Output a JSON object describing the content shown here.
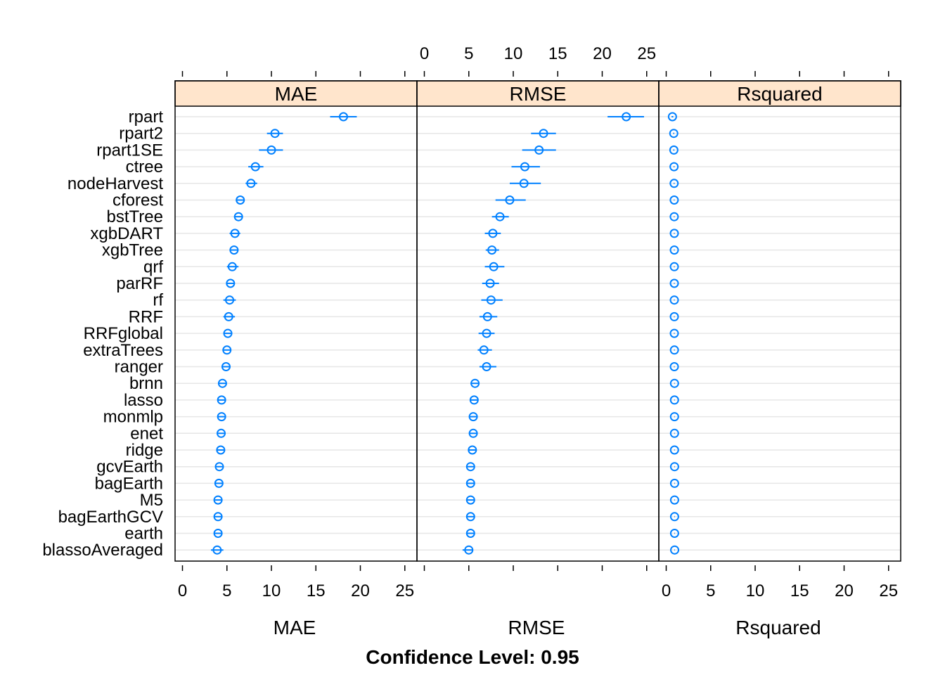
{
  "chart_data": {
    "type": "dotplot",
    "title": "",
    "subtitle": "Confidence Level: 0.95",
    "xlim": [
      0,
      25
    ],
    "xticks": [
      0,
      5,
      10,
      15,
      20,
      25
    ],
    "colors": {
      "series": "#0080ff",
      "strip_bg": "#ffe5cc",
      "grid": "#e6e6e6"
    },
    "grid": true,
    "models": [
      "rpart",
      "rpart2",
      "rpart1SE",
      "ctree",
      "nodeHarvest",
      "cforest",
      "bstTree",
      "xgbDART",
      "xgbTree",
      "qrf",
      "parRF",
      "rf",
      "RRF",
      "RRFglobal",
      "extraTrees",
      "ranger",
      "brnn",
      "lasso",
      "monmlp",
      "enet",
      "ridge",
      "gcvEarth",
      "bagEarth",
      "M5",
      "bagEarthGCV",
      "earth",
      "blassoAveraged"
    ],
    "panels": [
      {
        "name": "MAE",
        "xlabel": "MAE",
        "estimate": [
          18.1,
          10.4,
          10.0,
          8.2,
          7.7,
          6.5,
          6.3,
          5.9,
          5.8,
          5.6,
          5.4,
          5.3,
          5.2,
          5.1,
          5.0,
          4.9,
          4.5,
          4.4,
          4.4,
          4.35,
          4.3,
          4.15,
          4.1,
          4.0,
          4.0,
          4.0,
          3.9
        ],
        "lower": [
          16.6,
          9.5,
          8.6,
          7.4,
          7.1,
          6.0,
          5.8,
          5.3,
          5.4,
          5.0,
          4.9,
          4.6,
          4.6,
          4.6,
          4.6,
          4.5,
          4.0,
          4.0,
          4.0,
          4.0,
          3.9,
          3.75,
          3.7,
          3.65,
          3.6,
          3.6,
          3.2
        ],
        "upper": [
          19.6,
          11.3,
          11.3,
          9.1,
          8.4,
          7.0,
          6.8,
          6.5,
          6.3,
          6.3,
          5.9,
          6.0,
          5.9,
          5.6,
          5.4,
          5.4,
          4.9,
          4.8,
          4.8,
          4.7,
          4.7,
          4.5,
          4.5,
          4.4,
          4.4,
          4.4,
          4.6
        ]
      },
      {
        "name": "RMSE",
        "xlabel": "RMSE",
        "estimate": [
          22.7,
          13.4,
          12.9,
          11.3,
          11.2,
          9.6,
          8.5,
          7.7,
          7.6,
          7.8,
          7.4,
          7.5,
          7.1,
          7.0,
          6.7,
          7.0,
          5.7,
          5.6,
          5.5,
          5.5,
          5.4,
          5.2,
          5.2,
          5.2,
          5.2,
          5.2,
          5.0
        ],
        "lower": [
          20.6,
          12.0,
          11.0,
          9.8,
          9.6,
          8.0,
          7.6,
          6.8,
          6.9,
          6.8,
          6.5,
          6.4,
          6.2,
          6.1,
          6.0,
          6.2,
          5.2,
          5.1,
          5.1,
          5.1,
          5.0,
          4.8,
          4.8,
          4.8,
          4.8,
          4.8,
          4.3
        ],
        "upper": [
          24.7,
          14.8,
          14.8,
          13.0,
          13.1,
          11.4,
          9.5,
          8.6,
          8.4,
          9.0,
          8.4,
          8.8,
          8.2,
          7.9,
          7.6,
          8.1,
          6.2,
          6.0,
          6.0,
          5.9,
          5.9,
          5.6,
          5.6,
          5.6,
          5.6,
          5.6,
          5.5
        ]
      },
      {
        "name": "Rsquared",
        "xlabel": "Rsquared",
        "estimate": [
          0.7,
          0.85,
          0.86,
          0.88,
          0.89,
          0.9,
          0.9,
          0.91,
          0.91,
          0.91,
          0.91,
          0.91,
          0.91,
          0.91,
          0.92,
          0.91,
          0.93,
          0.93,
          0.93,
          0.93,
          0.93,
          0.94,
          0.94,
          0.94,
          0.94,
          0.94,
          0.95
        ],
        "lower": [
          0.6,
          0.79,
          0.8,
          0.83,
          0.84,
          0.86,
          0.86,
          0.87,
          0.87,
          0.87,
          0.87,
          0.87,
          0.87,
          0.87,
          0.88,
          0.87,
          0.9,
          0.9,
          0.9,
          0.9,
          0.9,
          0.91,
          0.91,
          0.91,
          0.91,
          0.91,
          0.92
        ],
        "upper": [
          0.8,
          0.91,
          0.92,
          0.93,
          0.94,
          0.94,
          0.94,
          0.95,
          0.95,
          0.95,
          0.95,
          0.95,
          0.95,
          0.95,
          0.96,
          0.95,
          0.96,
          0.96,
          0.96,
          0.96,
          0.96,
          0.97,
          0.97,
          0.97,
          0.97,
          0.97,
          0.98
        ]
      }
    ]
  }
}
